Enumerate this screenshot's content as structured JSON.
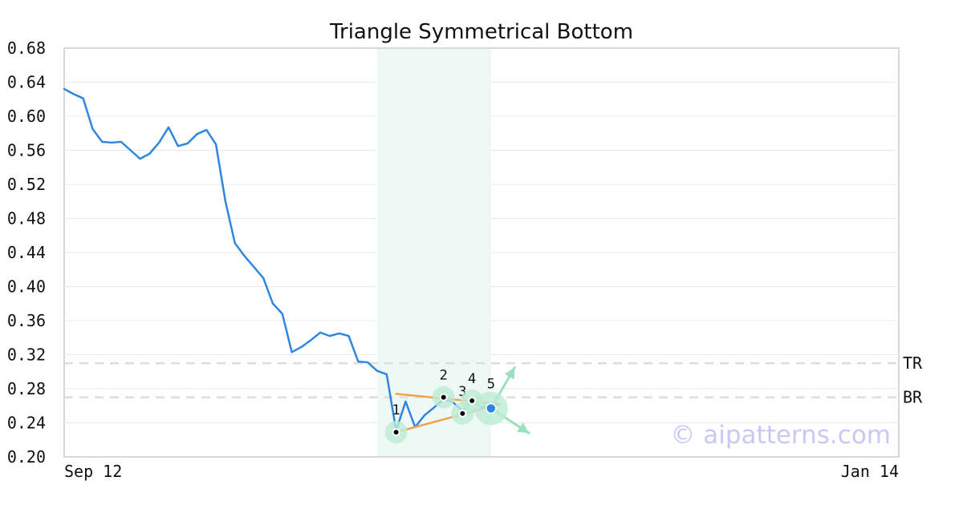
{
  "chart_data": {
    "type": "line",
    "title": "Triangle Symmetrical Bottom",
    "xlabel": "",
    "ylabel": "",
    "x_start": "Sep 12",
    "x_end": "Jan 14",
    "ylim": [
      0.2,
      0.68
    ],
    "yticks": [
      "0.68",
      "0.64",
      "0.60",
      "0.56",
      "0.52",
      "0.48",
      "0.44",
      "0.40",
      "0.36",
      "0.32",
      "0.28",
      "0.24",
      "0.20"
    ],
    "xticks": [
      "Sep 12",
      "Jan 14"
    ],
    "grid": true,
    "legend": "none",
    "series": [
      {
        "values": [
          0.632,
          0.626,
          0.621,
          0.585,
          0.57,
          0.569,
          0.57,
          0.56,
          0.55,
          0.556,
          0.569,
          0.587,
          0.565,
          0.568,
          0.579,
          0.584,
          0.567,
          0.5,
          0.451,
          0.436,
          0.423,
          0.41,
          0.38,
          0.368,
          0.323,
          0.329,
          0.337,
          0.346,
          0.342,
          0.345,
          0.342,
          0.312,
          0.311,
          0.301,
          0.297,
          0.231,
          0.265,
          0.235,
          0.249,
          0.258,
          0.268,
          0.264,
          0.254,
          0.266,
          0.258,
          0.261
        ],
        "color": "#2f86df"
      }
    ],
    "highlight_range": {
      "start_index": 33,
      "end_index": 45,
      "color": "#eef8f4"
    },
    "horizontal_lines": [
      {
        "label": "TR",
        "value": 0.31
      },
      {
        "label": "BR",
        "value": 0.27
      }
    ],
    "pattern_points": [
      {
        "label": "1",
        "index": 35,
        "value": 0.229
      },
      {
        "label": "2",
        "index": 40,
        "value": 0.27
      },
      {
        "label": "3",
        "index": 42,
        "value": 0.251
      },
      {
        "label": "4",
        "index": 43,
        "value": 0.266
      },
      {
        "label": "5",
        "index": 45,
        "value": 0.257
      }
    ],
    "trendlines": [
      {
        "from_index": 35,
        "from_value": 0.274,
        "to_index": 46,
        "to_value": 0.262
      },
      {
        "from_index": 35,
        "from_value": 0.229,
        "to_index": 46,
        "to_value": 0.262
      }
    ],
    "breakout_arrows": [
      {
        "from_index": 45,
        "from_value": 0.257,
        "to_index": 47.5,
        "to_value": 0.305
      },
      {
        "from_index": 45,
        "from_value": 0.257,
        "to_index": 49,
        "to_value": 0.228
      }
    ],
    "watermark": "© aipatterns.com",
    "colors": {
      "line": "#2f86df",
      "trend": "#f0a24d",
      "marker_halo": "#bdebd5",
      "marker_dot": "#000000",
      "last_marker": "#2f86df",
      "arrow": "#9adfbe",
      "grid": "#e9e9e9",
      "axis": "#d8d8d8",
      "ref_line": "#dddddd"
    }
  }
}
